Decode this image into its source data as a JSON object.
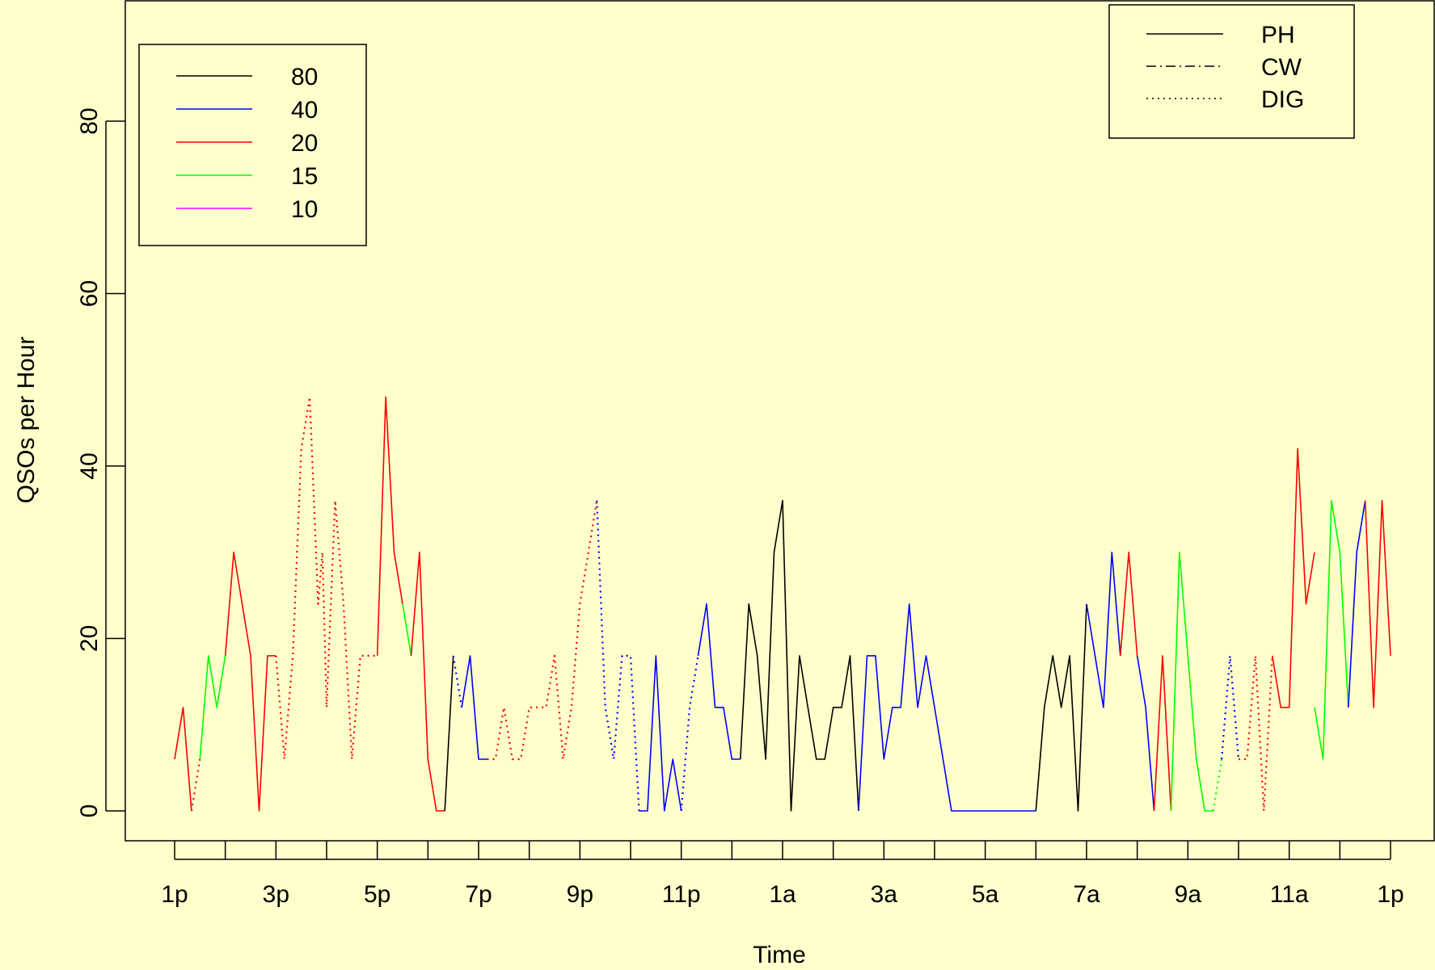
{
  "chart_data": {
    "type": "line",
    "title": "",
    "xlabel": "Time",
    "ylabel": "QSOs per Hour",
    "ylim": [
      -3,
      93
    ],
    "xlim": [
      -0.5,
      24.5
    ],
    "grid": false,
    "y_ticks": [
      0,
      20,
      40,
      60,
      80
    ],
    "x_ticks": [
      {
        "pos": 0,
        "label": "1p"
      },
      {
        "pos": 1,
        "label": ""
      },
      {
        "pos": 2,
        "label": "3p"
      },
      {
        "pos": 3,
        "label": ""
      },
      {
        "pos": 4,
        "label": "5p"
      },
      {
        "pos": 5,
        "label": ""
      },
      {
        "pos": 6,
        "label": "7p"
      },
      {
        "pos": 7,
        "label": ""
      },
      {
        "pos": 8,
        "label": "9p"
      },
      {
        "pos": 9,
        "label": ""
      },
      {
        "pos": 10,
        "label": "11p"
      },
      {
        "pos": 11,
        "label": ""
      },
      {
        "pos": 12,
        "label": "1a"
      },
      {
        "pos": 13,
        "label": ""
      },
      {
        "pos": 14,
        "label": "3a"
      },
      {
        "pos": 15,
        "label": ""
      },
      {
        "pos": 16,
        "label": "5a"
      },
      {
        "pos": 17,
        "label": ""
      },
      {
        "pos": 18,
        "label": "7a"
      },
      {
        "pos": 19,
        "label": ""
      },
      {
        "pos": 20,
        "label": "9a"
      },
      {
        "pos": 21,
        "label": ""
      },
      {
        "pos": 22,
        "label": "11a"
      },
      {
        "pos": 23,
        "label": ""
      },
      {
        "pos": 24,
        "label": "1p"
      }
    ],
    "band_legend": {
      "placement": "top-left",
      "entries": [
        {
          "label": "80",
          "color": "#000000"
        },
        {
          "label": "40",
          "color": "#0000ff"
        },
        {
          "label": "20",
          "color": "#ff0000"
        },
        {
          "label": "15",
          "color": "#00ff00"
        },
        {
          "label": "10",
          "color": "#ff00ff"
        }
      ]
    },
    "mode_legend": {
      "placement": "top-right",
      "entries": [
        {
          "label": "PH",
          "dash": "none"
        },
        {
          "label": "CW",
          "dash": "12,5,2,5"
        },
        {
          "label": "DIG",
          "dash": "2,5"
        }
      ]
    },
    "colors": {
      "80": "#000000",
      "40": "#0000ff",
      "20": "#ff0000",
      "15": "#00ff00",
      "10": "#ff00ff"
    },
    "dashes": {
      "PH": "none",
      "CW": "12,5,2,5",
      "DIG": "2,5"
    },
    "x_unit": "hours after 1p",
    "series": [
      {
        "band": "20",
        "mode": "PH",
        "x": [
          0,
          0.167,
          0.333
        ],
        "y": [
          6,
          12,
          0
        ]
      },
      {
        "band": "20",
        "mode": "DIG",
        "x": [
          0.333,
          0.5
        ],
        "y": [
          0,
          6
        ]
      },
      {
        "band": "15",
        "mode": "PH",
        "x": [
          0.5,
          0.667,
          0.833,
          1.0
        ],
        "y": [
          6,
          18,
          12,
          18
        ]
      },
      {
        "band": "20",
        "mode": "PH",
        "x": [
          1.0,
          1.167,
          1.5,
          1.667,
          1.833,
          2.0
        ],
        "y": [
          18,
          30,
          18,
          0,
          18,
          18
        ]
      },
      {
        "band": "20",
        "mode": "DIG",
        "x": [
          2.0,
          2.167,
          2.333,
          2.5,
          2.667,
          2.833,
          2.917,
          3.0,
          3.167,
          3.333,
          3.5,
          3.667,
          3.833,
          4.0
        ],
        "y": [
          18,
          6,
          18,
          42,
          48,
          24,
          30,
          12,
          36,
          24,
          6,
          18,
          18,
          18
        ]
      },
      {
        "band": "20",
        "mode": "PH",
        "x": [
          4.0,
          4.167,
          4.333,
          4.5
        ],
        "y": [
          18,
          48,
          30,
          24
        ]
      },
      {
        "band": "15",
        "mode": "PH",
        "x": [
          4.5,
          4.667
        ],
        "y": [
          24,
          18
        ]
      },
      {
        "band": "20",
        "mode": "PH",
        "x": [
          4.667,
          4.833,
          5.0,
          5.167,
          5.333
        ],
        "y": [
          18,
          30,
          6,
          0,
          0
        ]
      },
      {
        "band": "80",
        "mode": "PH",
        "x": [
          5.333,
          5.5
        ],
        "y": [
          0,
          18
        ]
      },
      {
        "band": "40",
        "mode": "DIG",
        "x": [
          5.5,
          5.667
        ],
        "y": [
          18,
          12
        ]
      },
      {
        "band": "40",
        "mode": "PH",
        "x": [
          5.667,
          5.833,
          6.0,
          6.167
        ],
        "y": [
          12,
          18,
          6,
          6
        ]
      },
      {
        "band": "20",
        "mode": "DIG",
        "x": [
          6.167,
          6.333,
          6.5,
          6.667,
          6.833,
          7.0,
          7.167,
          7.333,
          7.5,
          7.667,
          7.833,
          8.0,
          8.167,
          8.333
        ],
        "y": [
          6,
          6,
          12,
          6,
          6,
          12,
          12,
          12,
          18,
          6,
          12,
          24,
          30,
          36
        ]
      },
      {
        "band": "40",
        "mode": "DIG",
        "x": [
          8.333,
          8.5,
          8.667,
          8.833,
          9.0,
          9.167
        ],
        "y": [
          36,
          12,
          6,
          18,
          18,
          0
        ]
      },
      {
        "band": "40",
        "mode": "PH",
        "x": [
          9.167,
          9.333,
          9.5,
          9.667,
          9.833,
          10.0
        ],
        "y": [
          0,
          0,
          18,
          0,
          6,
          0
        ]
      },
      {
        "band": "40",
        "mode": "DIG",
        "x": [
          10.0,
          10.167,
          10.333
        ],
        "y": [
          0,
          12,
          18
        ]
      },
      {
        "band": "40",
        "mode": "PH",
        "x": [
          10.333,
          10.5,
          10.667,
          10.833,
          11.0,
          11.167
        ],
        "y": [
          18,
          24,
          12,
          12,
          6,
          6
        ]
      },
      {
        "band": "80",
        "mode": "PH",
        "x": [
          11.167,
          11.333,
          11.5,
          11.667,
          11.833,
          12.0,
          12.167,
          12.333,
          12.5,
          12.667,
          12.833,
          13.0,
          13.167,
          13.333,
          13.5
        ],
        "y": [
          6,
          24,
          18,
          6,
          30,
          36,
          0,
          18,
          12,
          6,
          6,
          12,
          12,
          18,
          0
        ]
      },
      {
        "band": "40",
        "mode": "PH",
        "x": [
          13.5,
          13.667,
          13.833,
          14.0,
          14.167,
          14.333,
          14.5,
          14.667,
          14.833,
          15.0,
          15.167,
          15.333,
          15.5,
          15.667,
          15.833,
          16.0,
          16.167,
          16.333,
          16.5,
          16.667,
          16.833,
          17.0
        ],
        "y": [
          0,
          18,
          18,
          6,
          12,
          12,
          24,
          12,
          18,
          12,
          6,
          0,
          0,
          0,
          0,
          0,
          0,
          0,
          0,
          0,
          0,
          0
        ]
      },
      {
        "band": "80",
        "mode": "PH",
        "x": [
          17.0,
          17.167,
          17.333,
          17.5,
          17.667,
          17.833,
          18.0
        ],
        "y": [
          0,
          12,
          18,
          12,
          18,
          0,
          24
        ]
      },
      {
        "band": "40",
        "mode": "PH",
        "x": [
          18.0,
          18.167,
          18.333,
          18.5,
          18.667
        ],
        "y": [
          24,
          18,
          12,
          30,
          18
        ]
      },
      {
        "band": "20",
        "mode": "PH",
        "x": [
          18.667,
          18.833,
          19.0
        ],
        "y": [
          18,
          30,
          18
        ]
      },
      {
        "band": "40",
        "mode": "PH",
        "x": [
          19.0,
          19.167,
          19.333
        ],
        "y": [
          18,
          12,
          0
        ]
      },
      {
        "band": "20",
        "mode": "PH",
        "x": [
          19.333,
          19.5,
          19.667
        ],
        "y": [
          0,
          18,
          0
        ]
      },
      {
        "band": "15",
        "mode": "PH",
        "x": [
          19.667,
          19.833,
          20.0,
          20.167,
          20.333,
          20.5
        ],
        "y": [
          0,
          30,
          18,
          6,
          0,
          0
        ]
      },
      {
        "band": "15",
        "mode": "DIG",
        "x": [
          20.5,
          20.667
        ],
        "y": [
          0,
          6
        ]
      },
      {
        "band": "40",
        "mode": "DIG",
        "x": [
          20.667,
          20.833,
          21.0
        ],
        "y": [
          6,
          18,
          6
        ]
      },
      {
        "band": "20",
        "mode": "DIG",
        "x": [
          21.0,
          21.167,
          21.333,
          21.5,
          21.667
        ],
        "y": [
          6,
          6,
          18,
          0,
          18
        ]
      },
      {
        "band": "20",
        "mode": "PH",
        "x": [
          21.667,
          21.833,
          22.0,
          22.167,
          22.333,
          22.5
        ],
        "y": [
          18,
          12,
          12,
          42,
          24,
          30
        ]
      },
      {
        "band": "15",
        "mode": "PH",
        "x": [
          22.5,
          22.667,
          22.833,
          23.0,
          23.167
        ],
        "y": [
          12,
          6,
          36,
          30,
          12
        ]
      },
      {
        "band": "40",
        "mode": "PH",
        "x": [
          23.167,
          23.333,
          23.5
        ],
        "y": [
          12,
          30,
          36
        ]
      },
      {
        "band": "20",
        "mode": "PH",
        "x": [
          23.5,
          23.667,
          23.833,
          24.0
        ],
        "y": [
          36,
          12,
          36,
          18
        ]
      }
    ]
  }
}
